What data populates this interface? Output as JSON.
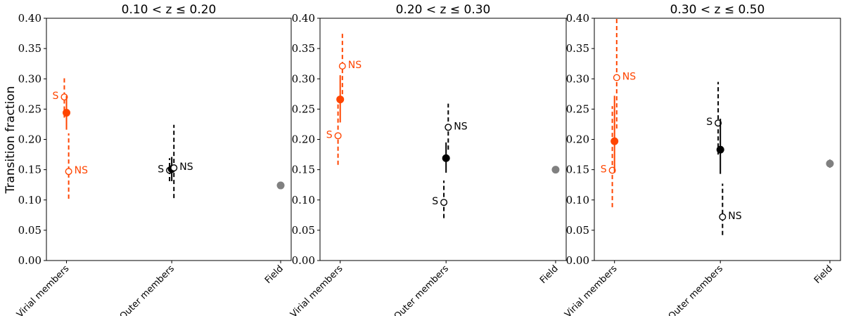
{
  "ylabel": "Transition fraction",
  "colors": {
    "virial": "#ff4500",
    "outer": "#000000",
    "field": "#808080"
  },
  "chart_data": [
    {
      "type": "scatter",
      "title": "0.10 < z ≤ 0.20",
      "categories": [
        "Virial members",
        "Outer members",
        "Field"
      ],
      "ylim": [
        0,
        0.4
      ],
      "yticks": [
        "0.00",
        "0.05",
        "0.10",
        "0.15",
        "0.20",
        "0.25",
        "0.30",
        "0.35",
        "0.40"
      ],
      "points": [
        {
          "cat": 0,
          "offset": -0.07,
          "y": 0.27,
          "lo": 0.236,
          "hi": 0.304,
          "style": "open",
          "dash": true,
          "color": "virial",
          "label": "S",
          "label_side": "left"
        },
        {
          "cat": 0,
          "offset": 0.0,
          "y": 0.244,
          "lo": 0.216,
          "hi": 0.272,
          "style": "filled",
          "dash": false,
          "color": "virial",
          "label": "",
          "label_side": ""
        },
        {
          "cat": 0,
          "offset": 0.07,
          "y": 0.147,
          "lo": 0.102,
          "hi": 0.21,
          "style": "open",
          "dash": true,
          "color": "virial",
          "label": "NS",
          "label_side": "right"
        },
        {
          "cat": 1,
          "offset": -0.07,
          "y": 0.149,
          "lo": 0.131,
          "hi": 0.169,
          "style": "open",
          "dash": true,
          "color": "outer",
          "label": "S",
          "label_side": "left"
        },
        {
          "cat": 1,
          "offset": 0.0,
          "y": 0.151,
          "lo": 0.131,
          "hi": 0.171,
          "style": "filled",
          "dash": false,
          "color": "outer",
          "label": "",
          "label_side": ""
        },
        {
          "cat": 1,
          "offset": 0.07,
          "y": 0.153,
          "lo": 0.103,
          "hi": 0.224,
          "style": "open",
          "dash": true,
          "color": "outer",
          "label": "NS",
          "label_side": "right"
        },
        {
          "cat": 2,
          "offset": 0.0,
          "y": 0.124,
          "lo": 0.119,
          "hi": 0.129,
          "style": "filled",
          "dash": false,
          "color": "field",
          "label": "",
          "label_side": ""
        }
      ]
    },
    {
      "type": "scatter",
      "title": "0.20 < z ≤ 0.30",
      "categories": [
        "Virial members",
        "Outer members",
        "Field"
      ],
      "ylim": [
        0,
        0.4
      ],
      "yticks": [
        "0.00",
        "0.05",
        "0.10",
        "0.15",
        "0.20",
        "0.25",
        "0.30",
        "0.35",
        "0.40"
      ],
      "points": [
        {
          "cat": 0,
          "offset": -0.07,
          "y": 0.206,
          "lo": 0.158,
          "hi": 0.265,
          "style": "open",
          "dash": true,
          "color": "virial",
          "label": "S",
          "label_side": "left"
        },
        {
          "cat": 0,
          "offset": 0.0,
          "y": 0.266,
          "lo": 0.228,
          "hi": 0.306,
          "style": "filled",
          "dash": false,
          "color": "virial",
          "label": "",
          "label_side": ""
        },
        {
          "cat": 0,
          "offset": 0.07,
          "y": 0.321,
          "lo": 0.263,
          "hi": 0.378,
          "style": "open",
          "dash": true,
          "color": "virial",
          "label": "NS",
          "label_side": "right"
        },
        {
          "cat": 1,
          "offset": -0.07,
          "y": 0.096,
          "lo": 0.07,
          "hi": 0.132,
          "style": "open",
          "dash": true,
          "color": "outer",
          "label": "S",
          "label_side": "left"
        },
        {
          "cat": 1,
          "offset": 0.0,
          "y": 0.169,
          "lo": 0.145,
          "hi": 0.195,
          "style": "filled",
          "dash": false,
          "color": "outer",
          "label": "",
          "label_side": ""
        },
        {
          "cat": 1,
          "offset": 0.07,
          "y": 0.22,
          "lo": 0.183,
          "hi": 0.259,
          "style": "open",
          "dash": true,
          "color": "outer",
          "label": "NS",
          "label_side": "right"
        },
        {
          "cat": 2,
          "offset": 0.0,
          "y": 0.15,
          "lo": 0.145,
          "hi": 0.155,
          "style": "filled",
          "dash": false,
          "color": "field",
          "label": "",
          "label_side": ""
        }
      ]
    },
    {
      "type": "scatter",
      "title": "0.30 < z ≤ 0.50",
      "categories": [
        "Virial members",
        "Outer members",
        "Field"
      ],
      "ylim": [
        0,
        0.4
      ],
      "yticks": [
        "0.00",
        "0.05",
        "0.10",
        "0.15",
        "0.20",
        "0.25",
        "0.30",
        "0.35",
        "0.40"
      ],
      "points": [
        {
          "cat": 0,
          "offset": -0.07,
          "y": 0.149,
          "lo": 0.088,
          "hi": 0.255,
          "style": "open",
          "dash": true,
          "color": "virial",
          "label": "S",
          "label_side": "left"
        },
        {
          "cat": 0,
          "offset": 0.0,
          "y": 0.197,
          "lo": 0.145,
          "hi": 0.272,
          "style": "filled",
          "dash": false,
          "color": "virial",
          "label": "",
          "label_side": ""
        },
        {
          "cat": 0,
          "offset": 0.07,
          "y": 0.302,
          "lo": 0.218,
          "hi": 0.4,
          "style": "open",
          "dash": true,
          "color": "virial",
          "label": "NS",
          "label_side": "right"
        },
        {
          "cat": 1,
          "offset": -0.07,
          "y": 0.227,
          "lo": 0.175,
          "hi": 0.295,
          "style": "open",
          "dash": true,
          "color": "outer",
          "label": "S",
          "label_side": "left"
        },
        {
          "cat": 1,
          "offset": 0.0,
          "y": 0.183,
          "lo": 0.143,
          "hi": 0.234,
          "style": "filled",
          "dash": false,
          "color": "outer",
          "label": "",
          "label_side": ""
        },
        {
          "cat": 1,
          "offset": 0.07,
          "y": 0.072,
          "lo": 0.042,
          "hi": 0.127,
          "style": "open",
          "dash": true,
          "color": "outer",
          "label": "NS",
          "label_side": "right"
        },
        {
          "cat": 2,
          "offset": 0.0,
          "y": 0.16,
          "lo": 0.153,
          "hi": 0.167,
          "style": "filled",
          "dash": false,
          "color": "field",
          "label": "",
          "label_side": ""
        }
      ]
    }
  ]
}
